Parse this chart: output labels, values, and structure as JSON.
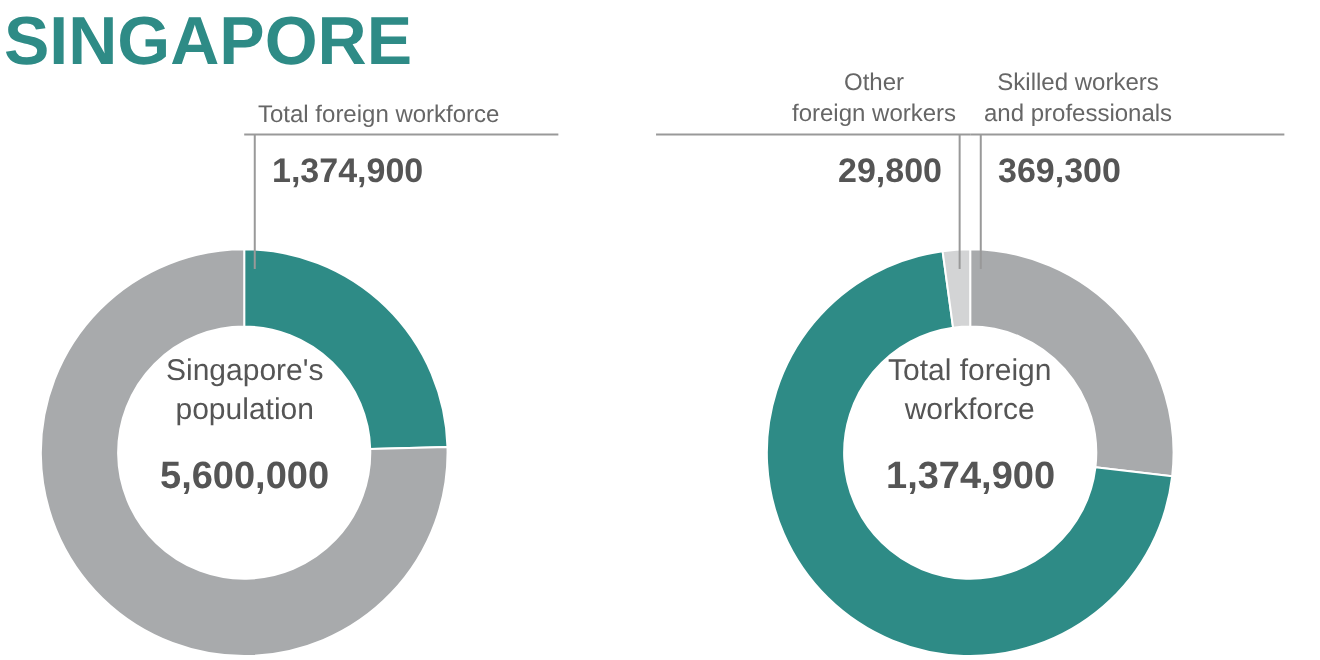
{
  "chart_data": [
    {
      "type": "donut",
      "title": "SINGAPORE",
      "categories": [
        "Total foreign workforce",
        null
      ],
      "values": [
        1374900,
        4225100
      ],
      "colors": [
        "#2e8b86",
        "#a8aaac"
      ],
      "value_labels": [
        "1,374,900",
        null
      ],
      "annotations": [
        "Singapore's\npopulation",
        "5,600,000"
      ]
    },
    {
      "type": "donut",
      "categories": [
        "Skilled workers\nand professionals",
        null,
        "Other\nforeign workers"
      ],
      "values": [
        369300,
        975800,
        29800
      ],
      "colors": [
        "#a8aaac",
        "#2e8b86",
        "#d3d4d5"
      ],
      "value_labels": [
        "369,300",
        null,
        "29,800"
      ],
      "annotations": [
        "Total foreign\nworkforce",
        "1,374,900"
      ]
    }
  ]
}
